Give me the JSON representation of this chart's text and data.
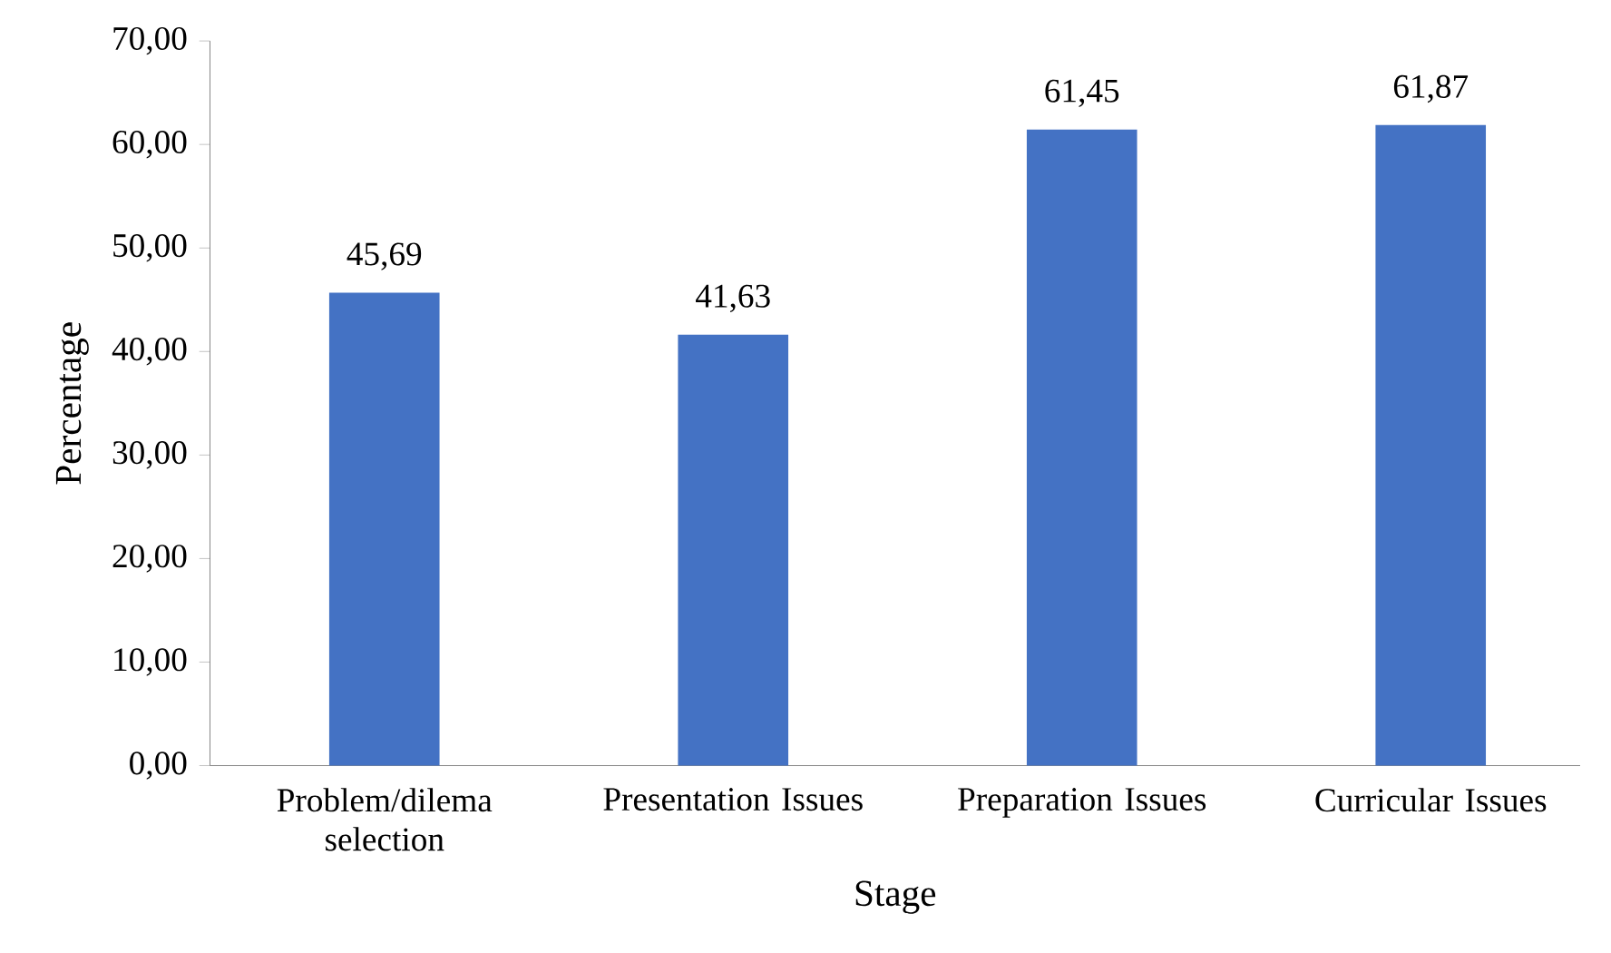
{
  "chart_data": {
    "type": "bar",
    "xlabel": "Stage",
    "ylabel": "Percentage",
    "categories": [
      "Problem/dilema selection",
      "Presentation Issues",
      "Preparation Issues",
      "Curricular Issues"
    ],
    "values": [
      45.69,
      41.63,
      61.45,
      61.87
    ],
    "value_labels": [
      "45,69",
      "41,63",
      "61,45",
      "61,87"
    ],
    "color": "#4472c4",
    "ylim": [
      0,
      70
    ],
    "yticks": [
      {
        "value": 0,
        "label": "0,00"
      },
      {
        "value": 10,
        "label": "10,00"
      },
      {
        "value": 20,
        "label": "20,00"
      },
      {
        "value": 30,
        "label": "30,00"
      },
      {
        "value": 40,
        "label": "40,00"
      },
      {
        "value": 50,
        "label": "50,00"
      },
      {
        "value": 60,
        "label": "60,00"
      },
      {
        "value": 70,
        "label": "70,00"
      }
    ],
    "grid": false
  }
}
